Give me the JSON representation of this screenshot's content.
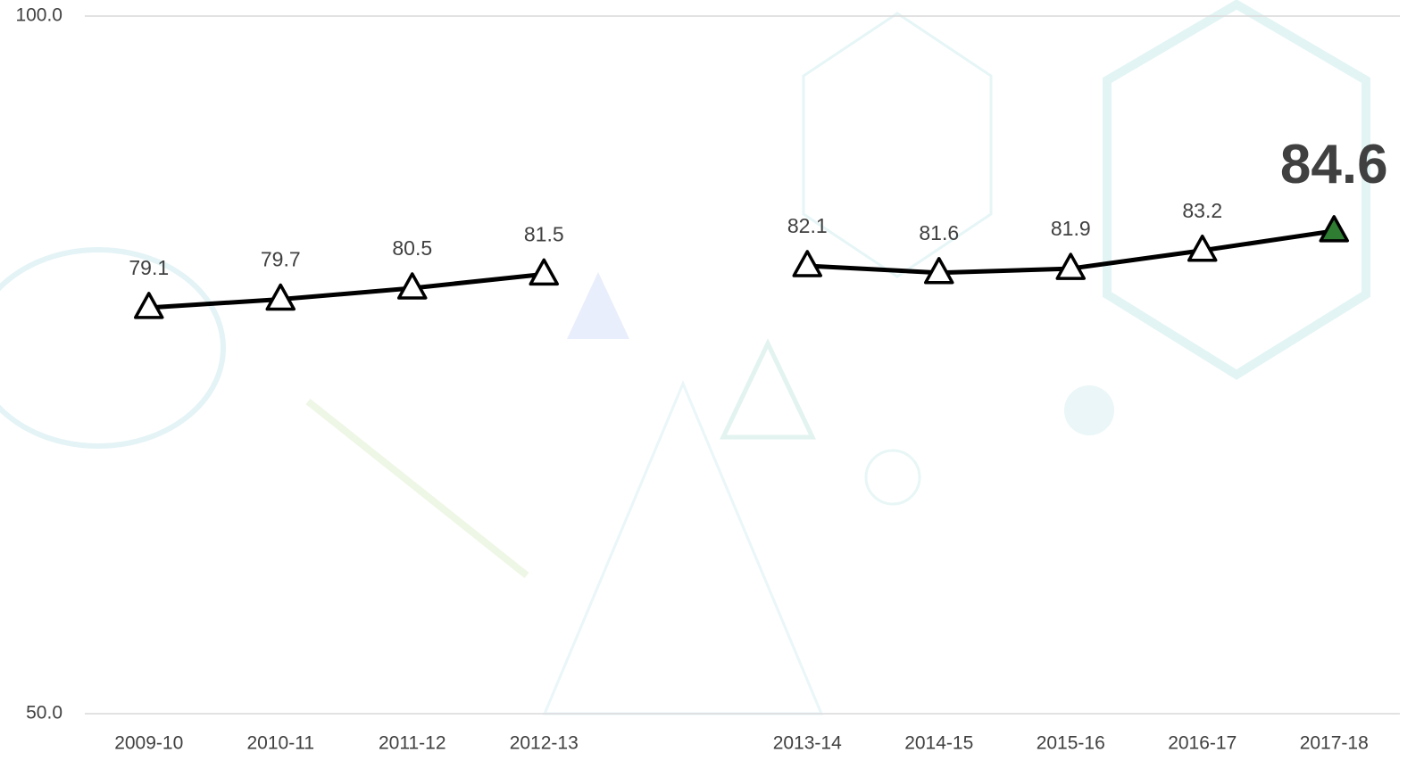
{
  "chart_data": {
    "type": "line",
    "categories": [
      "2009-10",
      "2010-11",
      "2011-12",
      "2012-13",
      null,
      "2013-14",
      "2014-15",
      "2015-16",
      "2016-17",
      "2017-18"
    ],
    "values": [
      79.1,
      79.7,
      80.5,
      81.5,
      null,
      82.1,
      81.6,
      81.9,
      83.2,
      84.6
    ],
    "color": "#000000",
    "marker": "triangle",
    "marker_color": "#ffffff",
    "point_colors": [
      "#ffffff",
      "#ffffff",
      "#ffffff",
      "#ffffff",
      null,
      "#ffffff",
      "#ffffff",
      "#ffffff",
      "#ffffff",
      "#2e7d32"
    ],
    "ylim": [
      50,
      100
    ],
    "yticks": [
      {
        "value": 50,
        "label": "50.0"
      },
      {
        "value": 100,
        "label": "100.0"
      }
    ],
    "grid": true
  }
}
